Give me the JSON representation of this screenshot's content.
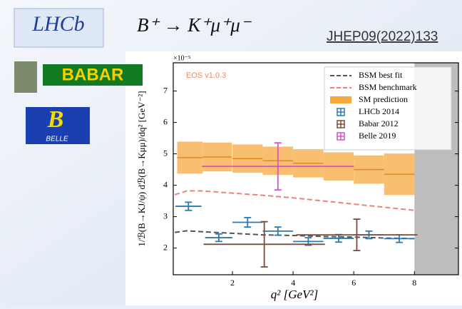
{
  "header": {
    "title": "B⁺ → K⁺μ⁺μ⁻",
    "reference": "JHEP09(2022)133"
  },
  "logos": [
    "LHCb",
    "BABAR",
    "BELLE"
  ],
  "chart_data": {
    "type": "errorbar",
    "annotation": "EOS v1.0.3",
    "x_label": "q² [GeV²]",
    "y_label": "1/ℬ(B→KJ/ψ) dℬ(B→Kμμ)/dq² [GeV⁻²]",
    "y_scale_label": "×10⁻⁵",
    "xlim": [
      0.05,
      9.45
    ],
    "ylim": [
      1.15,
      7.9
    ],
    "xticks": [
      2,
      4,
      6,
      8
    ],
    "yticks": [
      2,
      3,
      4,
      5,
      6,
      7
    ],
    "shaded_xrange": [
      8,
      9.45
    ],
    "shaded_color": "#bdbdbd",
    "legend": "upper right",
    "series": [
      {
        "name": "BSM best fit",
        "kind": "line",
        "color": "#555555",
        "x": [
          0.1,
          0.5,
          1,
          2,
          3,
          4,
          5,
          6,
          7,
          8
        ],
        "values": [
          2.5,
          2.55,
          2.52,
          2.47,
          2.42,
          2.4,
          2.37,
          2.35,
          2.32,
          2.3
        ]
      },
      {
        "name": "BSM benchmark",
        "kind": "line",
        "color": "#f08080",
        "x": [
          0.1,
          0.5,
          1,
          2,
          3,
          4,
          5,
          6,
          7,
          8
        ],
        "values": [
          3.7,
          3.82,
          3.82,
          3.75,
          3.68,
          3.6,
          3.5,
          3.4,
          3.3,
          3.2
        ]
      },
      {
        "name": "SM prediction",
        "kind": "band",
        "color": "#f7a940",
        "x": [
          0.6,
          1.5,
          2.5,
          3.5,
          4.5,
          5.5,
          6.5,
          7.5
        ],
        "xerr": [
          0.42,
          0.48,
          0.5,
          0.5,
          0.5,
          0.5,
          0.5,
          0.5
        ],
        "values": [
          4.88,
          4.9,
          4.85,
          4.78,
          4.7,
          4.6,
          4.5,
          4.35
        ],
        "errors": [
          0.51,
          0.46,
          0.45,
          0.45,
          0.45,
          0.45,
          0.45,
          0.66
        ]
      },
      {
        "name": "LHCb 2014",
        "kind": "points",
        "color": "#2a7ab0",
        "x": [
          0.55,
          1.55,
          2.5,
          3.5,
          4.5,
          5.5,
          6.5,
          7.5
        ],
        "xerr": [
          0.43,
          0.45,
          0.5,
          0.5,
          0.5,
          0.5,
          0.5,
          0.5
        ],
        "values": [
          3.33,
          2.33,
          2.82,
          2.54,
          2.21,
          2.31,
          2.42,
          2.3
        ],
        "errors": [
          0.13,
          0.12,
          0.15,
          0.13,
          0.12,
          0.12,
          0.12,
          0.12
        ]
      },
      {
        "name": "Babar 2012",
        "kind": "points",
        "color": "#7b4a3a",
        "x": [
          3.05,
          6.1
        ],
        "xerr": [
          2,
          2
        ],
        "values": [
          2.12,
          2.42
        ],
        "errors": [
          0.72,
          0.5
        ]
      },
      {
        "name": "Belle 2019",
        "kind": "points",
        "color": "#d455c4",
        "x": [
          3.5
        ],
        "xerr": [
          2.5
        ],
        "values": [
          4.6
        ],
        "errors": [
          0.75
        ]
      }
    ]
  }
}
